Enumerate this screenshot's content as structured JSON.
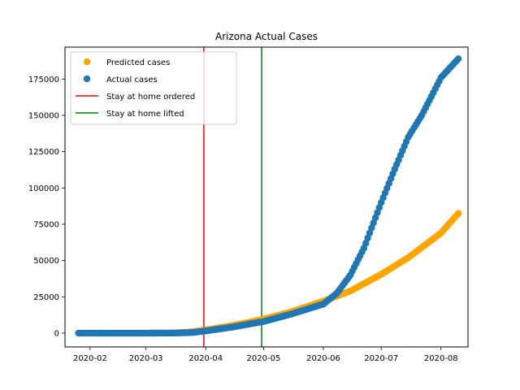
{
  "chart_data": {
    "type": "scatter",
    "title": "Arizona Actual Cases",
    "xlabel": "",
    "ylabel": "",
    "x_range": [
      "2020-01-19",
      "2020-08-15"
    ],
    "ylim": [
      -9500,
      197000
    ],
    "x_ticks": [
      "2020-02",
      "2020-03",
      "2020-04",
      "2020-05",
      "2020-06",
      "2020-07",
      "2020-08"
    ],
    "y_ticks": [
      0,
      25000,
      50000,
      75000,
      100000,
      125000,
      150000,
      175000
    ],
    "grid": false,
    "legend_position": "top-left",
    "series": [
      {
        "name": "Predicted cases",
        "color": "#ffa500",
        "marker": "circle",
        "points": [
          [
            "2020-01-26",
            0
          ],
          [
            "2020-02-15",
            0
          ],
          [
            "2020-03-01",
            0
          ],
          [
            "2020-03-15",
            100
          ],
          [
            "2020-03-25",
            900
          ],
          [
            "2020-04-01",
            2200
          ],
          [
            "2020-04-15",
            5200
          ],
          [
            "2020-05-01",
            9600
          ],
          [
            "2020-05-15",
            14500
          ],
          [
            "2020-06-01",
            22000
          ],
          [
            "2020-06-15",
            29000
          ],
          [
            "2020-07-01",
            40500
          ],
          [
            "2020-07-15",
            52000
          ],
          [
            "2020-08-01",
            69000
          ],
          [
            "2020-08-10",
            82500
          ]
        ]
      },
      {
        "name": "Actual cases",
        "color": "#1f77b4",
        "marker": "circle",
        "points": [
          [
            "2020-01-26",
            0
          ],
          [
            "2020-02-15",
            0
          ],
          [
            "2020-03-01",
            0
          ],
          [
            "2020-03-15",
            50
          ],
          [
            "2020-03-25",
            400
          ],
          [
            "2020-04-01",
            1500
          ],
          [
            "2020-04-15",
            4200
          ],
          [
            "2020-05-01",
            8000
          ],
          [
            "2020-05-15",
            13000
          ],
          [
            "2020-06-01",
            20000
          ],
          [
            "2020-06-08",
            27500
          ],
          [
            "2020-06-15",
            40000
          ],
          [
            "2020-06-22",
            58500
          ],
          [
            "2020-07-01",
            90000
          ],
          [
            "2020-07-08",
            113000
          ],
          [
            "2020-07-15",
            135000
          ],
          [
            "2020-07-22",
            150000
          ],
          [
            "2020-08-01",
            176000
          ],
          [
            "2020-08-10",
            189000
          ]
        ]
      }
    ],
    "vlines": [
      {
        "name": "Stay at home ordered",
        "date": "2020-03-31",
        "color": "#ff0000"
      },
      {
        "name": "Stay at home lifted",
        "date": "2020-04-30",
        "color": "#008000"
      }
    ]
  }
}
